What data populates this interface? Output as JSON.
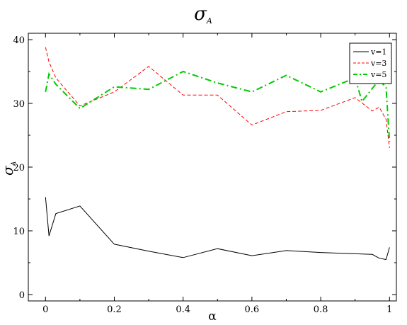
{
  "chart_data": {
    "type": "line",
    "title": "σ",
    "title_subscript": "A",
    "xlabel": "α",
    "ylabel": "σ",
    "ylabel_subscript": "A",
    "xlim": [
      -0.05,
      1.02
    ],
    "ylim": [
      -1,
      41
    ],
    "xticks": [
      0,
      0.2,
      0.4,
      0.6,
      0.8,
      1
    ],
    "xtick_labels": [
      "0",
      "0.2",
      "0.4",
      "0.6",
      "0.8",
      "1"
    ],
    "yticks": [
      0,
      10,
      20,
      30,
      40
    ],
    "ytick_labels": [
      "0",
      "10",
      "20",
      "30",
      "40"
    ],
    "grid": false,
    "legend_position": "top-right",
    "series": [
      {
        "name": "v=1",
        "color": "#000000",
        "dash": "solid",
        "points": [
          [
            0,
            15.3
          ],
          [
            0.01,
            9.2
          ],
          [
            0.03,
            12.7
          ],
          [
            0.1,
            13.9
          ],
          [
            0.2,
            7.9
          ],
          [
            0.3,
            6.8
          ],
          [
            0.4,
            5.8
          ],
          [
            0.5,
            7.2
          ],
          [
            0.6,
            6.1
          ],
          [
            0.7,
            6.9
          ],
          [
            0.8,
            6.6
          ],
          [
            0.9,
            6.4
          ],
          [
            0.95,
            6.3
          ],
          [
            0.97,
            5.7
          ],
          [
            0.99,
            5.5
          ],
          [
            1.0,
            7.4
          ]
        ]
      },
      {
        "name": "v=3",
        "color": "#ff0000",
        "dash": "dashed",
        "points": [
          [
            0,
            38.8
          ],
          [
            0.01,
            36.5
          ],
          [
            0.03,
            34.0
          ],
          [
            0.1,
            29.6
          ],
          [
            0.2,
            31.8
          ],
          [
            0.3,
            35.8
          ],
          [
            0.4,
            31.3
          ],
          [
            0.5,
            31.3
          ],
          [
            0.6,
            26.6
          ],
          [
            0.7,
            28.7
          ],
          [
            0.8,
            28.9
          ],
          [
            0.9,
            30.9
          ],
          [
            0.95,
            28.8
          ],
          [
            0.97,
            29.4
          ],
          [
            0.99,
            27.5
          ],
          [
            1.0,
            23.0
          ]
        ]
      },
      {
        "name": "v=5",
        "color": "#00cc00",
        "dash": "dashdot",
        "points": [
          [
            0,
            31.8
          ],
          [
            0.01,
            34.6
          ],
          [
            0.03,
            33.0
          ],
          [
            0.1,
            29.2
          ],
          [
            0.2,
            32.6
          ],
          [
            0.3,
            32.2
          ],
          [
            0.4,
            35.0
          ],
          [
            0.5,
            33.2
          ],
          [
            0.6,
            31.8
          ],
          [
            0.7,
            34.4
          ],
          [
            0.8,
            31.8
          ],
          [
            0.9,
            34.0
          ],
          [
            0.92,
            30.3
          ],
          [
            0.97,
            33.7
          ],
          [
            0.99,
            32.5
          ],
          [
            1.0,
            24.0
          ]
        ]
      }
    ]
  }
}
